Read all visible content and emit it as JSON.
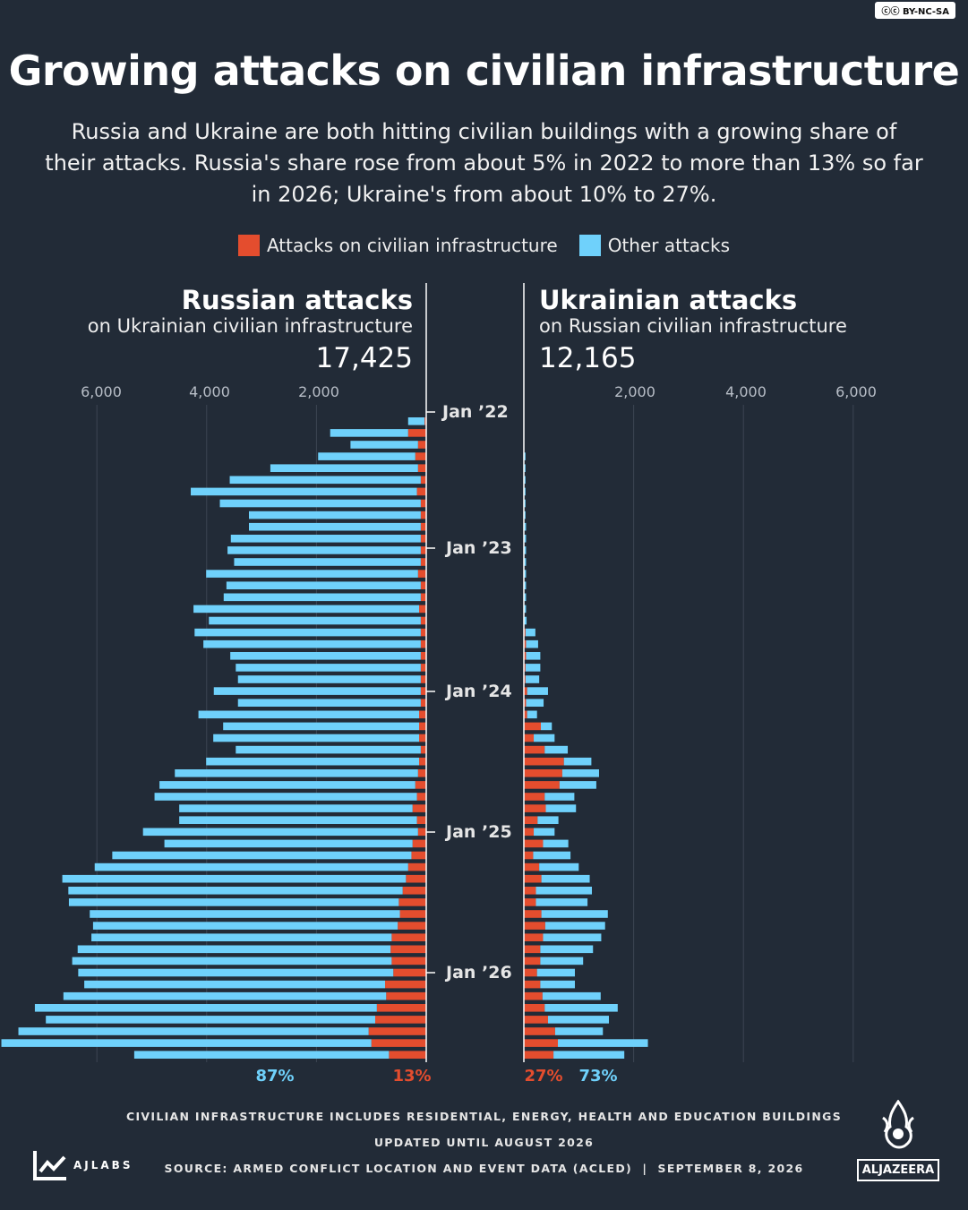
{
  "license_badge": "BY-NC-SA",
  "title": "Growing attacks on civilian infrastructure",
  "subtitle": "Russia and Ukraine are both hitting civilian buildings with a growing share of their attacks. Russia's share rose from about 5% in 2022 to more than 13% so far in 2026; Ukraine's from about 10% to 27%.",
  "legend": {
    "civilian_label": "Attacks on civilian infrastructure",
    "other_label": "Other attacks"
  },
  "colors": {
    "civilian": "#e44d2e",
    "other": "#6fd1fb",
    "background": "#222b37"
  },
  "russia": {
    "title": "Russian attacks",
    "subtitle": "on Ukrainian civilian infrastructure",
    "total": "17,425",
    "other_pct": "87%",
    "civilian_pct": "13%"
  },
  "ukraine": {
    "title": "Ukrainian attacks",
    "subtitle": "on Russian civilian infrastructure",
    "total": "12,165",
    "civilian_pct": "27%",
    "other_pct": "73%"
  },
  "date_labels": [
    "Jan ’22",
    "Jan ’23",
    "Jan ’24",
    "Jan ’25",
    "Jan ’26"
  ],
  "chart_data": {
    "type": "bar",
    "orientation": "horizontal-butterfly",
    "x_ticks": [
      2000,
      4000,
      6000
    ],
    "x_tick_labels": [
      "2,000",
      "4,000",
      "6,000"
    ],
    "xlim": [
      0,
      7800
    ],
    "categories": [
      "2022-02",
      "2022-03",
      "2022-04",
      "2022-05",
      "2022-06",
      "2022-07",
      "2022-08",
      "2022-09",
      "2022-10",
      "2022-11",
      "2022-12",
      "2023-01",
      "2023-02",
      "2023-03",
      "2023-04",
      "2023-05",
      "2023-06",
      "2023-07",
      "2023-08",
      "2023-09",
      "2023-10",
      "2023-11",
      "2023-12",
      "2024-01",
      "2024-02",
      "2024-03",
      "2024-04",
      "2024-05",
      "2024-06",
      "2024-07",
      "2024-08",
      "2024-09",
      "2024-10",
      "2024-11",
      "2024-12",
      "2025-01",
      "2025-02",
      "2025-03",
      "2025-04",
      "2025-05",
      "2025-06",
      "2025-07",
      "2025-08",
      "2025-09",
      "2025-10",
      "2025-11",
      "2025-12",
      "2026-01",
      "2026-02",
      "2026-03",
      "2026-04",
      "2026-05",
      "2026-06",
      "2026-07",
      "2026-08"
    ],
    "russia_civilian": [
      30,
      330,
      150,
      200,
      150,
      100,
      170,
      100,
      100,
      100,
      100,
      100,
      100,
      150,
      100,
      100,
      130,
      100,
      100,
      100,
      100,
      100,
      100,
      100,
      100,
      130,
      130,
      130,
      100,
      130,
      150,
      200,
      170,
      250,
      170,
      150,
      250,
      270,
      330,
      370,
      430,
      500,
      480,
      520,
      630,
      650,
      630,
      600,
      750,
      730,
      900,
      930,
      1050,
      1000,
      680
    ],
    "russia_other": [
      300,
      1420,
      1230,
      1770,
      2690,
      3480,
      4120,
      3660,
      3130,
      3130,
      3460,
      3520,
      3400,
      3860,
      3540,
      3590,
      4110,
      3860,
      4120,
      3960,
      3470,
      3370,
      3330,
      3770,
      3330,
      4020,
      3570,
      3750,
      3370,
      3880,
      4430,
      4660,
      4780,
      4250,
      4330,
      5010,
      4520,
      5450,
      5710,
      6260,
      6090,
      6010,
      5650,
      5550,
      5470,
      5700,
      5820,
      5740,
      5480,
      5880,
      6230,
      6000,
      6380,
      6740,
      4640
    ],
    "ukraine_civilian": [
      0,
      0,
      0,
      0,
      0,
      0,
      0,
      0,
      0,
      0,
      0,
      0,
      0,
      0,
      0,
      0,
      0,
      0,
      30,
      40,
      40,
      30,
      30,
      60,
      40,
      60,
      310,
      180,
      380,
      730,
      700,
      650,
      380,
      400,
      250,
      180,
      350,
      170,
      280,
      320,
      220,
      220,
      320,
      390,
      350,
      300,
      300,
      240,
      300,
      340,
      380,
      440,
      570,
      620,
      540
    ],
    "ukraine_other": [
      0,
      0,
      0,
      30,
      30,
      30,
      30,
      30,
      30,
      40,
      40,
      40,
      40,
      40,
      40,
      40,
      40,
      50,
      180,
      220,
      260,
      270,
      250,
      380,
      320,
      180,
      200,
      380,
      420,
      500,
      670,
      670,
      540,
      550,
      380,
      380,
      460,
      680,
      720,
      880,
      1020,
      940,
      1210,
      1090,
      1060,
      960,
      780,
      690,
      630,
      1060,
      1330,
      1110,
      870,
      1640,
      1290
    ]
  },
  "footer": {
    "note": "CIVILIAN INFRASTRUCTURE INCLUDES RESIDENTIAL, ENERGY, HEALTH AND EDUCATION BUILDINGS",
    "updated": "UPDATED UNTIL AUGUST 2026",
    "source": "SOURCE: ARMED CONFLICT LOCATION AND EVENT DATA (ACLED)  |  SEPTEMBER 8, 2026",
    "ajlabs": "AJLABS",
    "aljazeera": "ALJAZEERA"
  }
}
